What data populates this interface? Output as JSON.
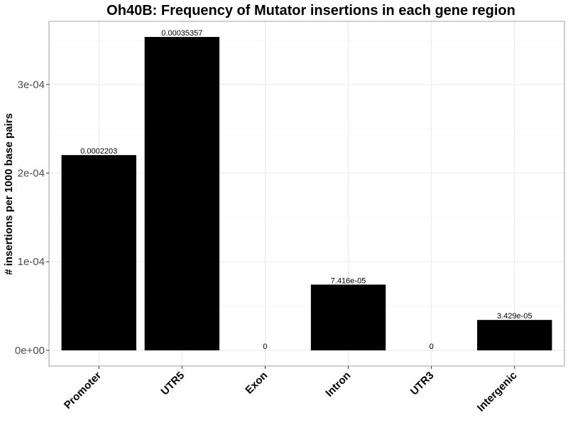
{
  "chart_data": {
    "type": "bar",
    "title": "Oh40B: Frequency of Mutator insertions in each gene region",
    "xlabel": "",
    "ylabel": "# insertions per 1000 base pairs",
    "categories": [
      "Promoter",
      "UTR5",
      "Exon",
      "Intron",
      "UTR3",
      "Intergenic"
    ],
    "values": [
      0.0002203,
      0.00035357,
      0,
      7.416e-05,
      0,
      3.429e-05
    ],
    "data_labels": [
      "0.0002203",
      "0.00035357",
      "0",
      "7.416e-05",
      "0",
      "3.429e-05"
    ],
    "ylim": [
      -1.77e-05,
      0.0003712
    ],
    "y_ticks": [
      0,
      0.0001,
      0.0002,
      0.0003
    ],
    "y_tick_labels": [
      "0e+00",
      "1e-04",
      "2e-04",
      "3e-04"
    ],
    "grid": true,
    "legend": "none",
    "colors": {
      "bar": "#000000",
      "panel_border": "#a0a0a0",
      "grid_major": "#ebebeb",
      "grid_minor": "#f4f4f4",
      "axis_text": "#4d4d4d"
    }
  }
}
